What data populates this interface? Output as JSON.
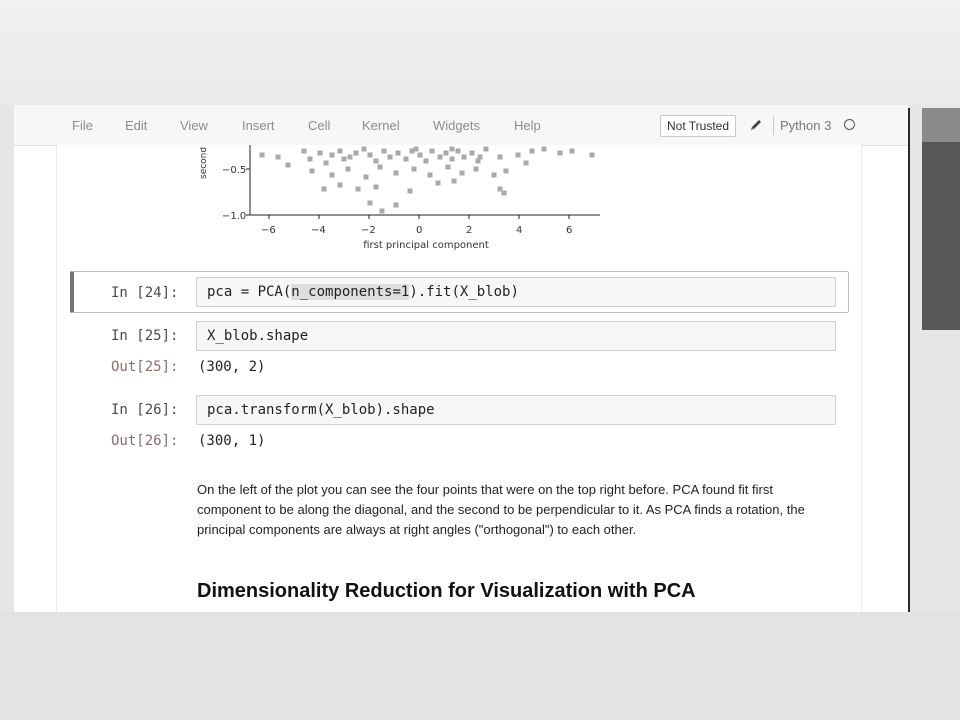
{
  "menubar": {
    "items": [
      "File",
      "Edit",
      "View",
      "Insert",
      "Cell",
      "Kernel",
      "Widgets",
      "Help"
    ],
    "trust_label": "Not Trusted",
    "kernel_name": "Python 3"
  },
  "plot": {
    "ylabel": "second",
    "xlabel": "first principal component",
    "yticks": [
      "−0.5",
      "−1.0"
    ],
    "xticks": [
      "−6",
      "−4",
      "−2",
      "0",
      "2",
      "4",
      "6"
    ]
  },
  "cells": [
    {
      "in_prompt": "In [24]:",
      "code_pre": "pca = PCA(",
      "code_hl": "n_components=1",
      "code_post": ").fit(X_blob)"
    },
    {
      "in_prompt": "In [25]:",
      "code": "X_blob.shape",
      "out_prompt": "Out[25]:",
      "output": "(300, 2)"
    },
    {
      "in_prompt": "In [26]:",
      "code": "pca.transform(X_blob).shape",
      "out_prompt": "Out[26]:",
      "output": "(300, 1)"
    }
  ],
  "markdown": {
    "paragraph": "On the left of the plot you can see the four points that were on the top right before. PCA found fit first component to be along the diagonal, and the second to be perpendicular to it. As PCA finds a rotation, the principal components are always at right angles (\"orthogonal\") to each other.",
    "heading": "Dimensionality Reduction for Visualization with PCA"
  }
}
